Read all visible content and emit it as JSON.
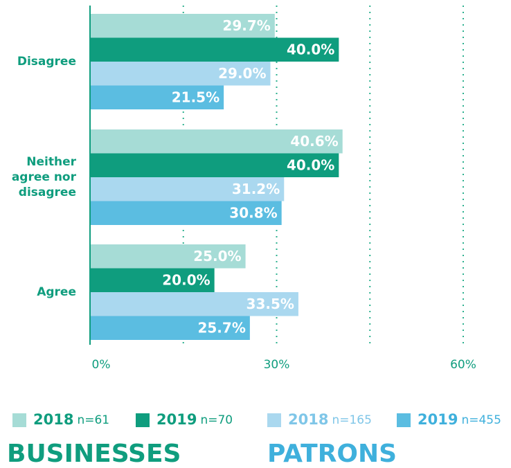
{
  "chart_data": {
    "type": "hbar",
    "categories": [
      "Disagree",
      "Neither agree nor disagree",
      "Agree"
    ],
    "groups": [
      "BUSINESSES",
      "PATRONS"
    ],
    "series": [
      {
        "name": "2018",
        "n": "n=61",
        "group": 0,
        "color": "#a6dcd6",
        "values": [
          29.7,
          40.6,
          25.0
        ],
        "value_labels": [
          "29.7%",
          "40.6%",
          "25.0%"
        ]
      },
      {
        "name": "2019",
        "n": "n=70",
        "group": 0,
        "color": "#0f9d7e",
        "values": [
          40.0,
          40.0,
          20.0
        ],
        "value_labels": [
          "40.0%",
          "40.0%",
          "20.0%"
        ]
      },
      {
        "name": "2018",
        "n": "n=165",
        "group": 1,
        "color": "#aad8ef",
        "values": [
          29.0,
          31.2,
          33.5
        ],
        "value_labels": [
          "29.0%",
          "31.2%",
          "33.5%"
        ]
      },
      {
        "name": "2019",
        "n": "n=455",
        "group": 1,
        "color": "#5bbde1",
        "values": [
          21.5,
          30.8,
          25.7
        ],
        "value_labels": [
          "21.5%",
          "30.8%",
          "25.7%"
        ]
      }
    ],
    "xlim": [
      0,
      60
    ],
    "xticks": [
      {
        "value": 0,
        "label": "0%"
      },
      {
        "value": 30,
        "label": "30%"
      },
      {
        "value": 60,
        "label": "60%"
      }
    ],
    "minor_xticks": [
      15,
      45
    ],
    "grid": true
  }
}
